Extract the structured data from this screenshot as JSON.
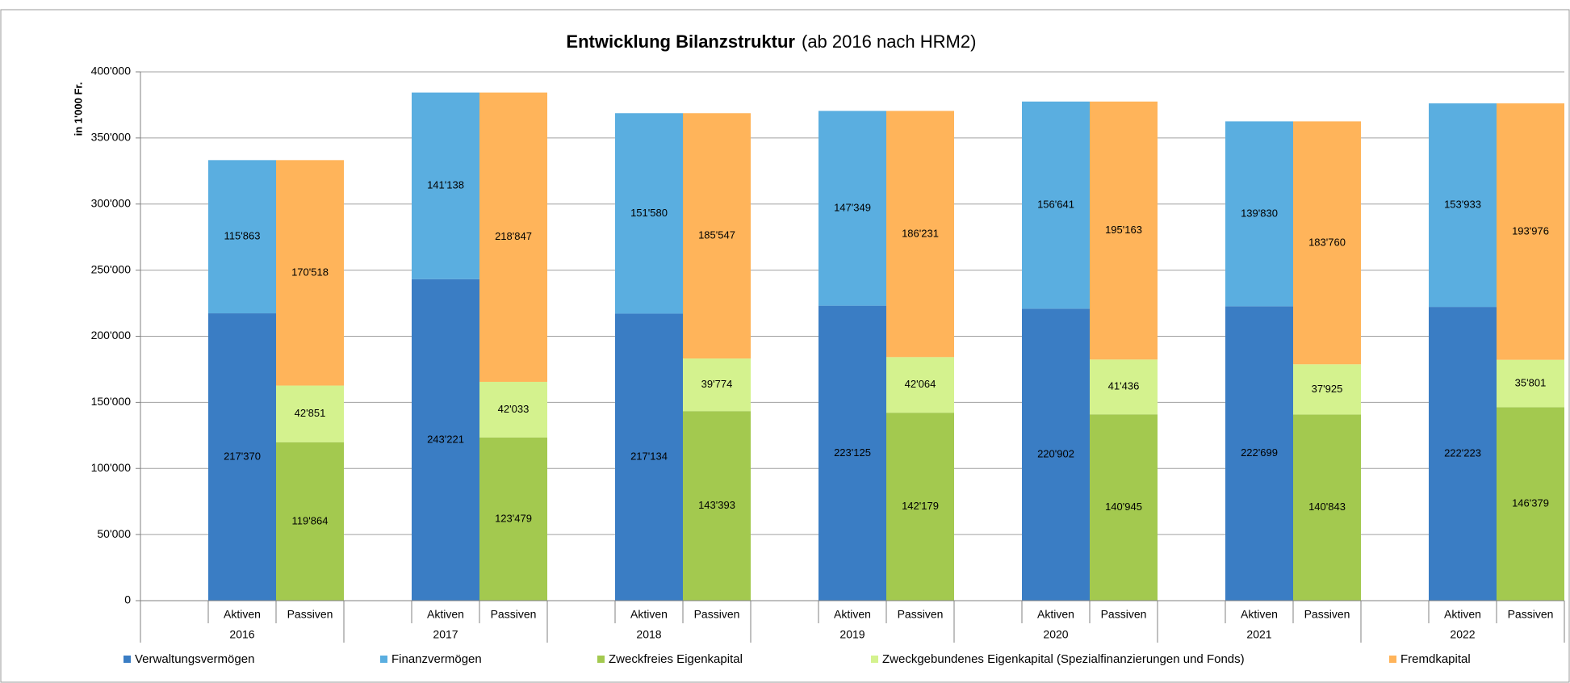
{
  "chart_data": {
    "type": "stacked_bar",
    "title": "Entwicklung Bilanzstruktur",
    "subtitle": "(ab 2016 nach HRM2)",
    "ylabel": "in 1'000 Fr.",
    "categories": [
      "2016",
      "2017",
      "2018",
      "2019",
      "2020",
      "2021",
      "2022"
    ],
    "groups": [
      "Aktiven",
      "Passiven"
    ],
    "ylim": [
      0,
      400000
    ],
    "yticks": [
      0,
      {
        "value": 50000,
        "label": "50'000"
      },
      {
        "value": 100000,
        "label": "100'000"
      },
      {
        "value": 150000,
        "label": "150'000"
      },
      {
        "value": 200000,
        "label": "200'000"
      },
      {
        "value": 250000,
        "label": "250'000"
      },
      {
        "value": 300000,
        "label": "300'000"
      },
      {
        "value": 350000,
        "label": "350'000"
      },
      {
        "value": 400000,
        "label": "400'000"
      }
    ],
    "grid": true,
    "legend": "bottom",
    "series": [
      {
        "name": "Verwaltungsvermögen",
        "color": "#3a7dc4",
        "group": 0,
        "values": [
          217370,
          243221,
          217134,
          223125,
          220902,
          222699,
          222223
        ],
        "value_labels": [
          "217'370",
          "243'221",
          "217'134",
          "223'125",
          "220'902",
          "222'699",
          "222'223"
        ]
      },
      {
        "name": "Finanzvermögen",
        "color": "#5aaee0",
        "group": 0,
        "values": [
          115863,
          141138,
          151580,
          147349,
          156641,
          139830,
          153933
        ],
        "value_labels": [
          "115'863",
          "141'138",
          "151'580",
          "147'349",
          "156'641",
          "139'830",
          "153'933"
        ]
      },
      {
        "name": "Zweckfreies Eigenkapital",
        "color": "#a3c94f",
        "group": 1,
        "values": [
          119864,
          123479,
          143393,
          142179,
          140945,
          140843,
          146379
        ],
        "value_labels": [
          "119'864",
          "123'479",
          "143'393",
          "142'179",
          "140'945",
          "140'843",
          "146'379"
        ]
      },
      {
        "name": "Zweckgebundenes Eigenkapital (Spezialfinanzierungen und Fonds)",
        "color": "#d4f28e",
        "group": 1,
        "values": [
          42851,
          42033,
          39774,
          42064,
          41436,
          37925,
          35801
        ],
        "value_labels": [
          "42'851",
          "42'033",
          "39'774",
          "42'064",
          "41'436",
          "37'925",
          "35'801"
        ]
      },
      {
        "name": "Fremdkapital",
        "color": "#ffb45a",
        "group": 1,
        "values": [
          170518,
          218847,
          185547,
          186231,
          195163,
          183760,
          193976
        ],
        "value_labels": [
          "170'518",
          "218'847",
          "185'547",
          "186'231",
          "195'163",
          "183'760",
          "193'976"
        ]
      }
    ]
  }
}
